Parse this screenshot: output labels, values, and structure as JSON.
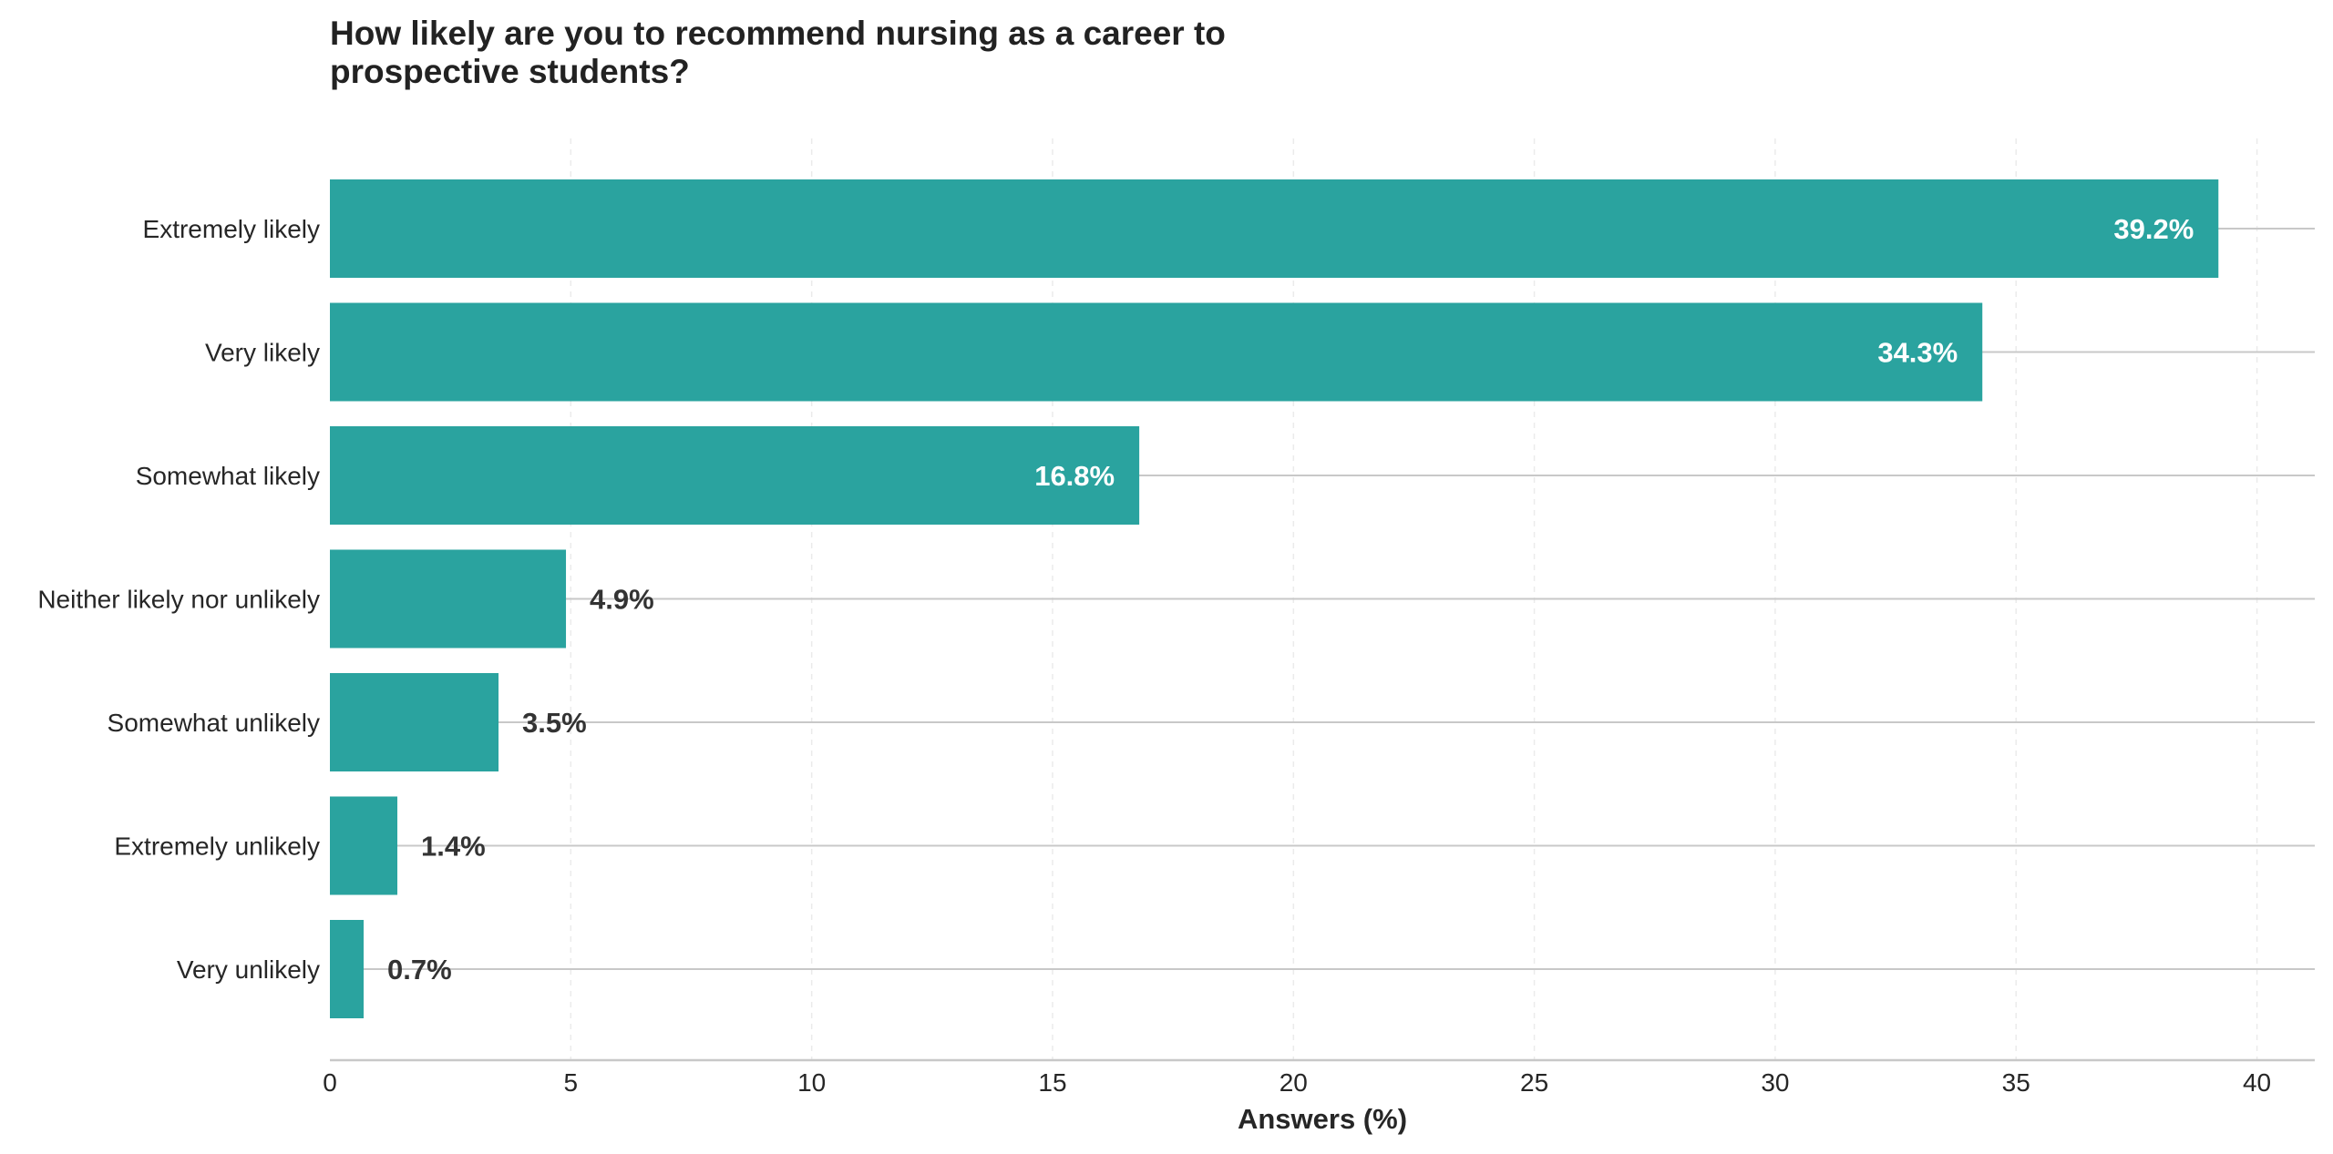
{
  "chart_data": {
    "type": "bar",
    "orientation": "horizontal",
    "title": "How likely are you to recommend nursing as a career to prospective students?",
    "xlabel": "Answers (%)",
    "ylabel": "",
    "categories": [
      "Extremely likely",
      "Very likely",
      "Somewhat likely",
      "Neither likely nor unlikely",
      "Somewhat unlikely",
      "Extremely unlikely",
      "Very unlikely"
    ],
    "values": [
      39.2,
      34.3,
      16.8,
      4.9,
      3.5,
      1.4,
      0.7
    ],
    "data_labels": [
      "39.2%",
      "34.3%",
      "16.8%",
      "4.9%",
      "3.5%",
      "1.4%",
      "0.7%"
    ],
    "xlim": [
      0,
      41.2
    ],
    "xticks": [
      0,
      5,
      10,
      15,
      20,
      25,
      30,
      35,
      40
    ],
    "grid": true,
    "legend": "none",
    "colors": {
      "bar": "#2aa39f",
      "label_inside": "#ffffff",
      "label_outside": "#333333",
      "grid_vertical": "#ebebeb",
      "grid_horizontal": "#c8c8c8",
      "axis_line": "#c8c8c8"
    }
  }
}
